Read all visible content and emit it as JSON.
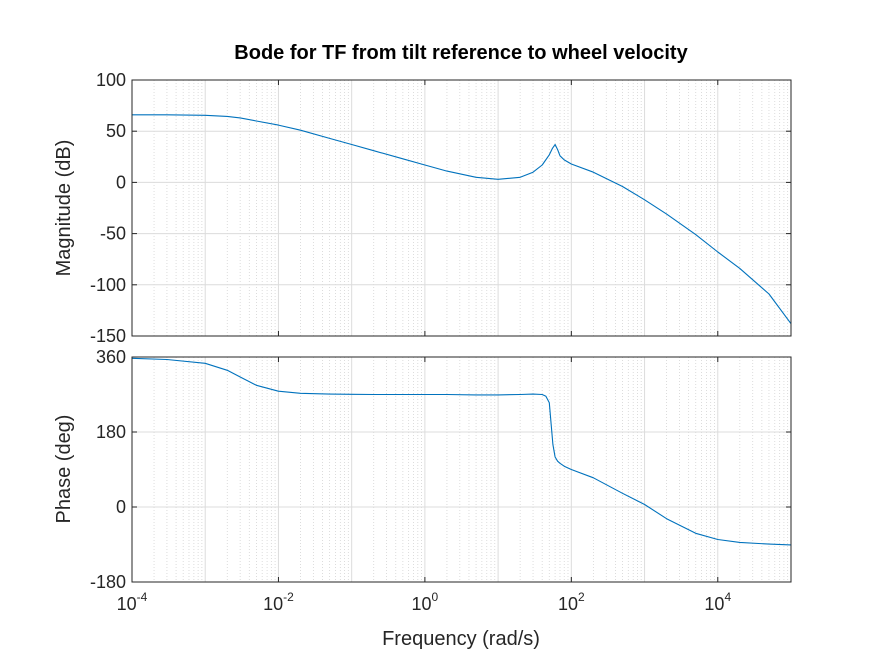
{
  "chart_data": {
    "type": "line",
    "title": "Bode for TF from tilt reference to wheel velocity",
    "xlabel": "Frequency  (rad/s)",
    "x_scale": "log",
    "xlim": [
      0.0001,
      100000
    ],
    "x_ticks": [
      {
        "value": 0.0001,
        "base": "10",
        "exp": "-4"
      },
      {
        "value": 0.01,
        "base": "10",
        "exp": "-2"
      },
      {
        "value": 1,
        "base": "10",
        "exp": "0"
      },
      {
        "value": 100,
        "base": "10",
        "exp": "2"
      },
      {
        "value": 10000,
        "base": "10",
        "exp": "4"
      }
    ],
    "grid": true,
    "line_color": "#0072BD",
    "subplots": [
      {
        "name": "magnitude",
        "ylabel": "Magnitude (dB)",
        "ylim": [
          -150,
          100
        ],
        "y_ticks": [
          100,
          50,
          0,
          -50,
          -100,
          -150
        ],
        "series": [
          {
            "x": [
              0.0001,
              0.0003,
              0.001,
              0.002,
              0.003,
              0.005,
              0.01,
              0.02,
              0.05,
              0.1,
              0.2,
              0.5,
              1,
              2,
              5,
              10,
              20,
              30,
              40,
              50,
              55,
              60,
              65,
              70,
              80,
              100,
              200,
              500,
              1000,
              2000,
              5000,
              10000,
              20000,
              50000,
              100000
            ],
            "y": [
              66,
              66,
              65.5,
              64.5,
              63,
              60,
              56,
              51,
              43,
              37,
              31,
              23,
              17,
              11,
              5,
              3,
              5,
              10,
              17,
              27,
              33,
              37,
              32,
              26,
              22,
              18,
              10,
              -4,
              -17,
              -31,
              -51,
              -68,
              -84,
              -109,
              -138
            ]
          }
        ]
      },
      {
        "name": "phase",
        "ylabel": "Phase (deg)",
        "ylim": [
          -180,
          360
        ],
        "y_ticks": [
          360,
          180,
          0,
          -180
        ],
        "series": [
          {
            "x": [
              0.0001,
              0.0003,
              0.001,
              0.002,
              0.003,
              0.005,
              0.01,
              0.02,
              0.05,
              0.1,
              0.2,
              0.5,
              1,
              2,
              5,
              10,
              20,
              30,
              40,
              45,
              50,
              53,
              56,
              60,
              65,
              70,
              80,
              100,
              200,
              500,
              1000,
              2000,
              5000,
              10000,
              20000,
              50000,
              100000
            ],
            "y": [
              357,
              354,
              345,
              328,
              312,
              292,
              278,
              273,
              271,
              270.5,
              270,
              270,
              270,
              270,
              269,
              269,
              270,
              271,
              270,
              266,
              250,
              200,
              150,
              120,
              110,
              105,
              98,
              90,
              70,
              33,
              6,
              -28,
              -63,
              -78,
              -85,
              -89,
              -91
            ]
          }
        ]
      }
    ]
  }
}
